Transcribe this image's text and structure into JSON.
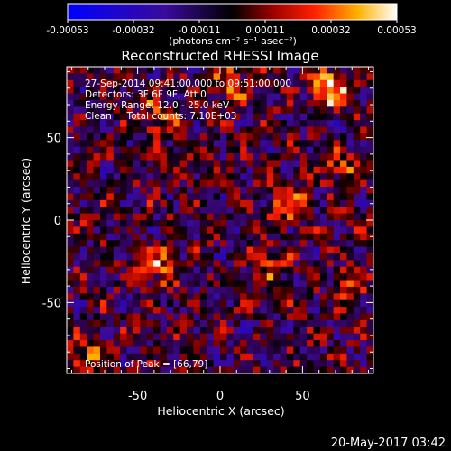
{
  "chart_data": {
    "type": "heatmap",
    "title": "Reconstructed RHESSI Image",
    "xlabel": "Heliocentric X (arcsec)",
    "ylabel": "Heliocentric Y (arcsec)",
    "xlim": [
      -93,
      93
    ],
    "ylim": [
      -93,
      93
    ],
    "x_ticks": [
      -50,
      0,
      50
    ],
    "y_ticks": [
      -50,
      0,
      50
    ],
    "colorbar": {
      "range": [
        -0.00053,
        0.00053
      ],
      "tick_labels": [
        "-0.00053",
        "-0.00032",
        "-0.00011",
        "0.00011",
        "0.00032",
        "0.00053"
      ],
      "unit_label": "(photons cm⁻² s⁻¹ asec⁻²)",
      "colormap": [
        "#0000ff",
        "#4a0aa0",
        "#8a1a10",
        "#ff2000",
        "#ffaa00",
        "#ffffff"
      ]
    },
    "annotations": [
      "27-Sep-2014 09:41:00.000 to 09:51:00.000",
      "Detectors: 3F 6F 9F, Att 0",
      "Energy Range: 12.0 - 25.0 keV",
      "Clean     Total counts: 7.10E+03",
      "Position of Peak = [66,79]"
    ],
    "peak": [
      66,
      79
    ],
    "peak_value": 0.00053,
    "bright_sources": [
      {
        "x": 66,
        "y": 79,
        "value": 0.00053
      },
      {
        "x": 42,
        "y": 8,
        "value": 0.0004
      },
      {
        "x": -38,
        "y": -28,
        "value": 0.00035
      },
      {
        "x": -82,
        "y": -83,
        "value": 0.00032
      },
      {
        "x": -38,
        "y": 62,
        "value": 0.0003
      },
      {
        "x": 5,
        "y": 80,
        "value": 0.00028
      },
      {
        "x": 75,
        "y": 30,
        "value": 0.00025
      },
      {
        "x": 30,
        "y": -25,
        "value": 0.00022
      },
      {
        "x": 78,
        "y": -40,
        "value": 0.0002
      }
    ]
  },
  "footer": {
    "timestamp": "20-May-2017 03:42"
  }
}
